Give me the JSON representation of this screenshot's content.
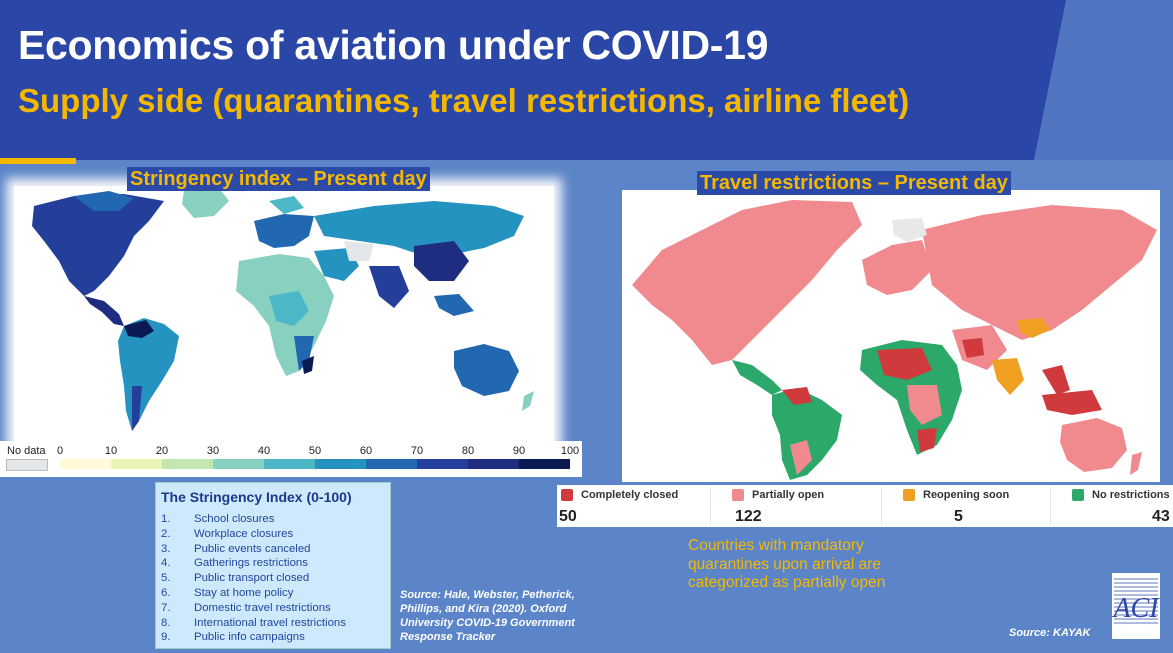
{
  "header": {
    "title": "Economics of aviation under COVID-19",
    "subtitle": "Supply side (quarantines, travel restrictions, airline fleet)"
  },
  "colors": {
    "banner": "#2a46a6",
    "background": "#5b85c8",
    "accent": "#f5b800"
  },
  "stringency": {
    "heading": "Stringency index – Present day",
    "legend": {
      "no_data_label": "No data",
      "ticks": [
        "0",
        "10",
        "20",
        "30",
        "40",
        "50",
        "60",
        "70",
        "80",
        "90",
        "100"
      ],
      "scale_colors": [
        "#fffbd8",
        "#e8f5b4",
        "#c4e7b1",
        "#88d0bf",
        "#4bb7c7",
        "#2593c0",
        "#2168b0",
        "#233f9a",
        "#1f2d80",
        "#0b1a55"
      ]
    },
    "box_title": "The Stringency Index (0-100)",
    "items": [
      {
        "num": "1.",
        "label": "School closures"
      },
      {
        "num": "2.",
        "label": "Workplace closures"
      },
      {
        "num": "3.",
        "label": "Public events canceled"
      },
      {
        "num": "4.",
        "label": "Gatherings restrictions"
      },
      {
        "num": "5.",
        "label": "Public transport closed"
      },
      {
        "num": "6.",
        "label": "Stay at home policy"
      },
      {
        "num": "7.",
        "label": "Domestic travel restrictions"
      },
      {
        "num": "8.",
        "label": "International travel restrictions"
      },
      {
        "num": "9.",
        "label": "Public info campaigns"
      }
    ],
    "source": "Source: Hale, Webster, Petherick, Phillips, and Kira (2020). Oxford University COVID-19 Government Response Tracker"
  },
  "travel": {
    "heading": "Travel restrictions – Present day",
    "legend": [
      {
        "label": "Completely closed",
        "count": "50",
        "color": "#d03a3c"
      },
      {
        "label": "Partially open",
        "count": "122",
        "color": "#f08a8e"
      },
      {
        "label": "Reopening soon",
        "count": "5",
        "color": "#f0a020"
      },
      {
        "label": "No restrictions",
        "count": "43",
        "color": "#2ba86a"
      }
    ],
    "note": "Countries with mandatory quarantines upon arrival are categorized as partially open",
    "source": "Source: KAYAK"
  },
  "logo": {
    "text": "ACI",
    "icon": "aci-logo-icon"
  }
}
